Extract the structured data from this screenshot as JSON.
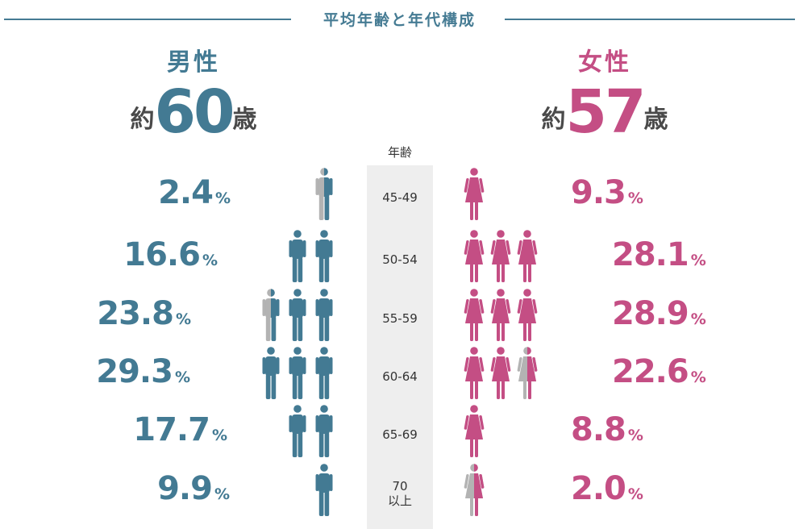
{
  "title": "平均年齢と年代構成",
  "age_header": "年齢",
  "male": {
    "label": "男性",
    "prefix": "約",
    "age": "60",
    "suffix": "歳"
  },
  "female": {
    "label": "女性",
    "prefix": "約",
    "age": "57",
    "suffix": "歳"
  },
  "percent_unit": "%",
  "colors": {
    "male": "#437a93",
    "female": "#c44e84",
    "inactive": "#b3b3b3",
    "title": "#457b93"
  },
  "chart_data": {
    "type": "pictogram",
    "categories": [
      "45-49",
      "50-54",
      "55-59",
      "60-64",
      "65-69",
      "70\n以上"
    ],
    "series": [
      {
        "name": "男性",
        "values": [
          2.4,
          16.6,
          23.8,
          29.3,
          17.7,
          9.9
        ],
        "labels": [
          "2.4",
          "16.6",
          "23.8",
          "29.3",
          "17.7",
          "9.9"
        ]
      },
      {
        "name": "女性",
        "values": [
          9.3,
          28.1,
          28.9,
          22.6,
          8.8,
          2.0
        ],
        "labels": [
          "9.3",
          "28.1",
          "28.9",
          "22.6",
          "8.8",
          "2.0"
        ]
      }
    ],
    "icon_unit": 10
  }
}
